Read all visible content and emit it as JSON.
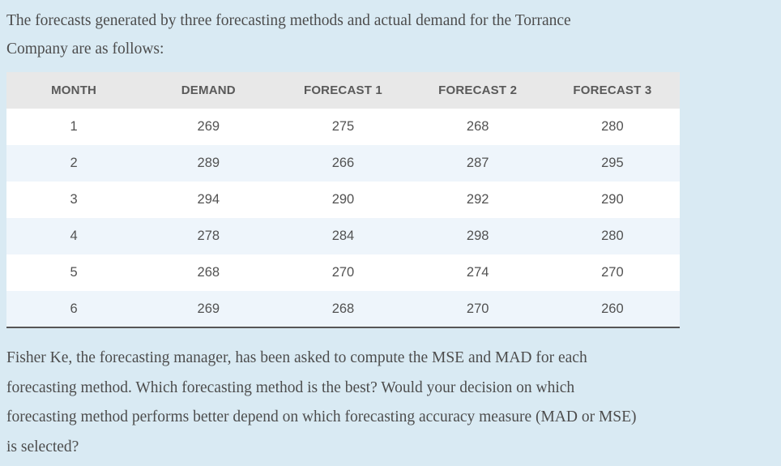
{
  "colors": {
    "page_background": "#d9eaf3",
    "table_header_background": "#e8e8e8",
    "table_stripe_background": "#eef5fb",
    "table_bottom_border": "#555555",
    "text": "#4d4d4d"
  },
  "intro": {
    "lines": [
      "The forecasts generated by three forecasting methods and actual demand for the Torrance",
      "Company are as follows:"
    ]
  },
  "table": {
    "headers": [
      "MONTH",
      "DEMAND",
      "FORECAST 1",
      "FORECAST 2",
      "FORECAST 3"
    ],
    "rows": [
      [
        "1",
        "269",
        "275",
        "268",
        "280"
      ],
      [
        "2",
        "289",
        "266",
        "287",
        "295"
      ],
      [
        "3",
        "294",
        "290",
        "292",
        "290"
      ],
      [
        "4",
        "278",
        "284",
        "298",
        "280"
      ],
      [
        "5",
        "268",
        "270",
        "274",
        "270"
      ],
      [
        "6",
        "269",
        "268",
        "270",
        "260"
      ]
    ]
  },
  "question": {
    "lines": [
      "Fisher Ke, the forecasting manager, has been asked to compute the MSE and MAD for each",
      "forecasting method. Which forecasting method is the best? Would your decision on which",
      "forecasting method performs better depend on which forecasting accuracy measure (MAD or MSE)",
      "is selected?"
    ]
  }
}
